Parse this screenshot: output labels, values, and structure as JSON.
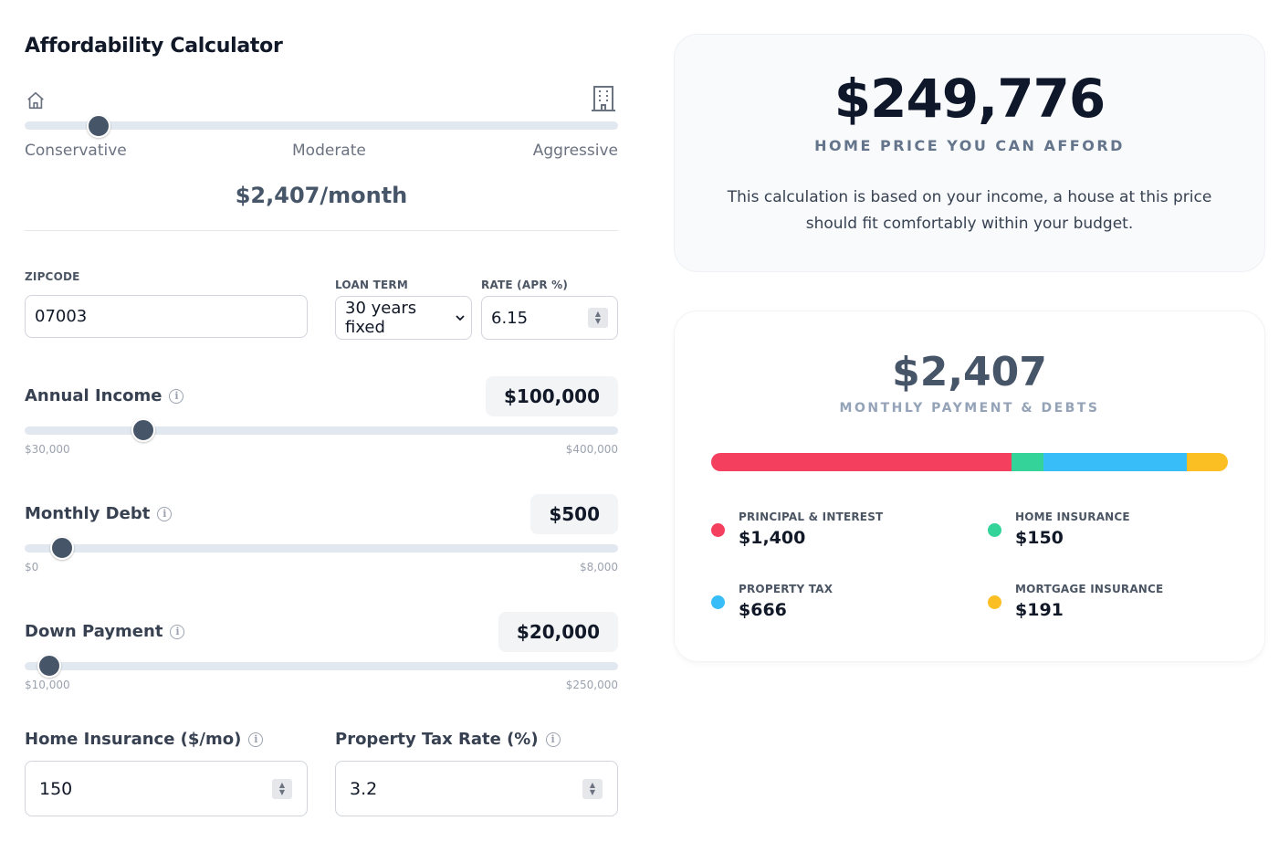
{
  "header": {
    "title": "Affordability Calculator"
  },
  "risk_slider": {
    "left_icon": "house-icon",
    "right_icon": "building-icon",
    "labels": [
      "Conservative",
      "Moderate",
      "Aggressive"
    ],
    "level_fraction": 0.125,
    "monthly_text": "$2,407/month"
  },
  "inputs": {
    "zipcode_label": "ZIPCODE",
    "zipcode_value": "07003",
    "loan_term_label": "LOAN TERM",
    "loan_term_value": "30 years fixed",
    "rate_label": "RATE (APR %)",
    "rate_value": "6.15"
  },
  "sliders": [
    {
      "label": "Annual Income",
      "value": "$100,000",
      "min": "$30,000",
      "max": "$400,000",
      "fraction": 0.2
    },
    {
      "label": "Monthly Debt",
      "value": "$500",
      "min": "$0",
      "max": "$8,000",
      "fraction": 0.0625
    },
    {
      "label": "Down Payment",
      "value": "$20,000",
      "min": "$10,000",
      "max": "$250,000",
      "fraction": 0.0417
    }
  ],
  "extra_inputs": {
    "home_insurance_label": "Home Insurance ($/mo)",
    "home_insurance_value": "150",
    "property_tax_label": "Property Tax Rate (%)",
    "property_tax_value": "3.2"
  },
  "summary": {
    "home_price": "$249,776",
    "home_price_caption": "HOME PRICE YOU CAN AFFORD",
    "description": "This calculation is based on your income, a house at this price should fit comfortably within your budget."
  },
  "payment": {
    "total": "$2,407",
    "caption": "MONTHLY PAYMENT & DEBTS",
    "breakdown": [
      {
        "label": "PRINCIPAL & INTEREST",
        "value": "$1,400",
        "amount": 1400,
        "color": "#f43f5e"
      },
      {
        "label": "HOME INSURANCE",
        "value": "$150",
        "amount": 150,
        "color": "#34d399"
      },
      {
        "label": "PROPERTY TAX",
        "value": "$666",
        "amount": 666,
        "color": "#38bdf8"
      },
      {
        "label": "MORTGAGE INSURANCE",
        "value": "$191",
        "amount": 191,
        "color": "#fbbf24"
      }
    ]
  }
}
